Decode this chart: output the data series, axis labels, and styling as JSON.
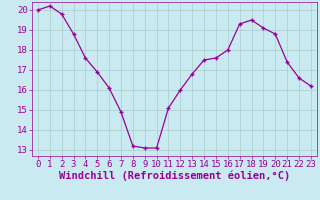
{
  "hours": [
    0,
    1,
    2,
    3,
    4,
    5,
    6,
    7,
    8,
    9,
    10,
    11,
    12,
    13,
    14,
    15,
    16,
    17,
    18,
    19,
    20,
    21,
    22,
    23
  ],
  "values": [
    20.0,
    20.2,
    19.8,
    18.8,
    17.6,
    16.9,
    16.1,
    14.9,
    13.2,
    13.1,
    13.1,
    15.1,
    16.0,
    16.8,
    17.5,
    17.6,
    18.0,
    19.3,
    19.5,
    19.1,
    18.8,
    17.4,
    16.6,
    16.2
  ],
  "line_color": "#990099",
  "marker": "+",
  "bg_color": "#c8eaf0",
  "grid_color": "#aacccc",
  "xlabel": "Windchill (Refroidissement éolien,°C)",
  "ylim": [
    13,
    20
  ],
  "xlim": [
    0,
    23
  ],
  "yticks": [
    13,
    14,
    15,
    16,
    17,
    18,
    19,
    20
  ],
  "tick_fontsize": 6.5,
  "xlabel_fontsize": 7.5,
  "xlabel_color": "#990099",
  "ytick_color": "#990099",
  "xtick_color": "#990099",
  "spine_color": "#990099"
}
